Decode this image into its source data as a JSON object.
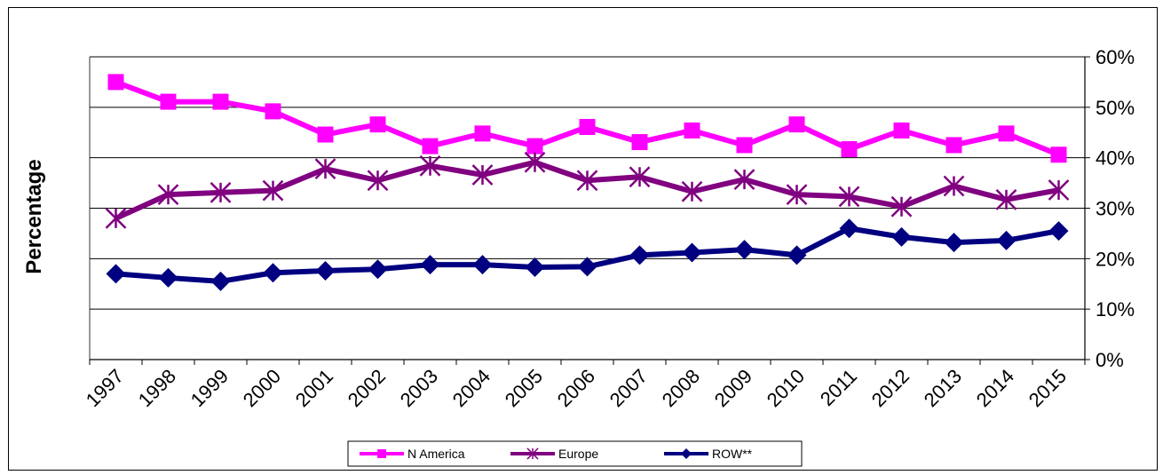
{
  "chart_data": {
    "type": "line",
    "title": "",
    "xlabel": "",
    "ylabel": "Percentage",
    "x": [
      "1997",
      "1998",
      "1999",
      "2000",
      "2001",
      "2002",
      "2003",
      "2004",
      "2005",
      "2006",
      "2007",
      "2008",
      "2009",
      "2010",
      "2011",
      "2012",
      "2013",
      "2014",
      "2015"
    ],
    "y_ticks": [
      "0%",
      "10%",
      "20%",
      "30%",
      "40%",
      "50%",
      "60%"
    ],
    "ylim": [
      0,
      60
    ],
    "y_axis_side": "right",
    "grid": "horizontal",
    "legend_position": "bottom",
    "series": [
      {
        "name": "N America",
        "color": "#ff00ff",
        "marker": "square",
        "values": [
          55,
          51.1,
          51.1,
          49.2,
          44.6,
          46.6,
          42.3,
          44.8,
          42.3,
          46.1,
          43.1,
          45.4,
          42.5,
          46.6,
          41.7,
          45.4,
          42.5,
          44.8,
          40.6
        ]
      },
      {
        "name": "Europe",
        "color": "#800080",
        "marker": "asterisk",
        "values": [
          28,
          32.7,
          33.1,
          33.5,
          37.8,
          35.5,
          38.4,
          36.6,
          39.1,
          35.5,
          36.2,
          33.3,
          35.7,
          32.7,
          32.3,
          30.3,
          34.4,
          31.7,
          33.6
        ]
      },
      {
        "name": "ROW**",
        "color": "#000080",
        "marker": "diamond",
        "values": [
          17,
          16.2,
          15.5,
          17.2,
          17.6,
          17.9,
          18.8,
          18.8,
          18.3,
          18.4,
          20.7,
          21.2,
          21.8,
          20.7,
          26,
          24.3,
          23.2,
          23.6,
          25.5
        ]
      }
    ]
  }
}
